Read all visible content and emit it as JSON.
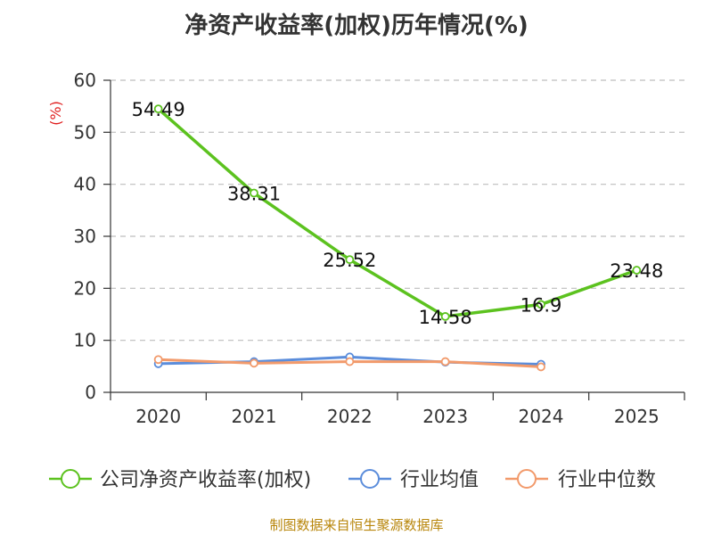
{
  "chart_data": {
    "type": "line",
    "title": "净资产收益率(加权)历年情况(%)",
    "ylabel": "(%)",
    "xlabel": "",
    "categories": [
      "2020",
      "2021",
      "2022",
      "2023",
      "2024",
      "2025"
    ],
    "ylim": [
      0,
      60
    ],
    "yticks": [
      0,
      10,
      20,
      30,
      40,
      50,
      60
    ],
    "grid": true,
    "legend_position": "bottom",
    "series": [
      {
        "name": "公司净资产收益率(加权)",
        "color": "#5cc21f",
        "values": [
          54.49,
          38.31,
          25.52,
          14.58,
          16.9,
          23.48
        ],
        "labels": [
          "54.49",
          "38.31",
          "25.52",
          "14.58",
          "16.9",
          "23.48"
        ]
      },
      {
        "name": "行业均值",
        "color": "#5b8ddb",
        "values": [
          5.5,
          5.9,
          6.8,
          5.8,
          5.4,
          null
        ]
      },
      {
        "name": "行业中位数",
        "color": "#f29a6b",
        "values": [
          6.3,
          5.6,
          5.9,
          5.9,
          4.9,
          null
        ]
      }
    ]
  },
  "source_note": "制图数据来自恒生聚源数据库"
}
